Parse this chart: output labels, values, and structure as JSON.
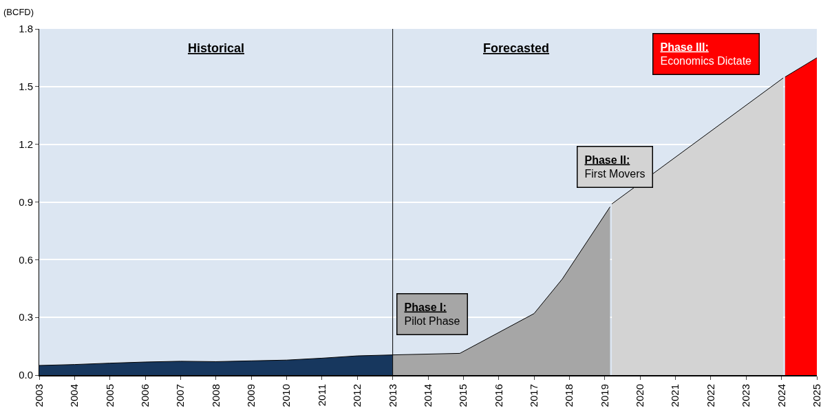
{
  "chart_data": {
    "type": "area",
    "ylabel": "(BCFD)",
    "series": [
      {
        "color": "#17375e",
        "x": [
          2003,
          2004,
          2005,
          2006,
          2007,
          2008,
          2009,
          2010,
          2011,
          2012,
          2013
        ],
        "values": [
          0.05,
          0.055,
          0.062,
          0.068,
          0.072,
          0.07,
          0.074,
          0.078,
          0.088,
          0.1,
          0.105
        ]
      },
      {
        "color": "#a6a6a6",
        "x": [
          2013,
          2014.9,
          2017,
          2017.8,
          2019.15
        ],
        "values": [
          0.105,
          0.113,
          0.32,
          0.5,
          0.875
        ]
      },
      {
        "color": "#d3d3d3",
        "x": [
          2019.2,
          2024.05
        ],
        "values": [
          0.89,
          1.545
        ]
      },
      {
        "color": "#ff0000",
        "x": [
          2024.1,
          2025
        ],
        "values": [
          1.55,
          1.65
        ]
      }
    ],
    "xlim": [
      2003,
      2025
    ],
    "xticks": [
      2003,
      2004,
      2005,
      2006,
      2007,
      2008,
      2009,
      2010,
      2011,
      2012,
      2013,
      2014,
      2015,
      2016,
      2017,
      2018,
      2019,
      2020,
      2021,
      2022,
      2023,
      2024,
      2025
    ],
    "ylim": [
      0,
      1.8
    ],
    "yticks": [
      {
        "value": 0,
        "label": "0.0"
      },
      {
        "value": 0.3,
        "label": "0.3"
      },
      {
        "value": 0.6,
        "label": "0.6"
      },
      {
        "value": 0.9,
        "label": "0.9"
      },
      {
        "value": 1.2,
        "label": "1.2"
      },
      {
        "value": 1.5,
        "label": "1.5"
      },
      {
        "value": 1.8,
        "label": "1.8"
      }
    ],
    "grid": "y",
    "ref_lines": [
      {
        "axis": "x",
        "value": 2013,
        "color": "#000000"
      }
    ],
    "annotations": [
      "Historical",
      "Forecasted",
      "Phase I:\nPilot Phase",
      "Phase II:\nFirst Movers",
      "Phase III:\nEconomics Dictate"
    ]
  }
}
